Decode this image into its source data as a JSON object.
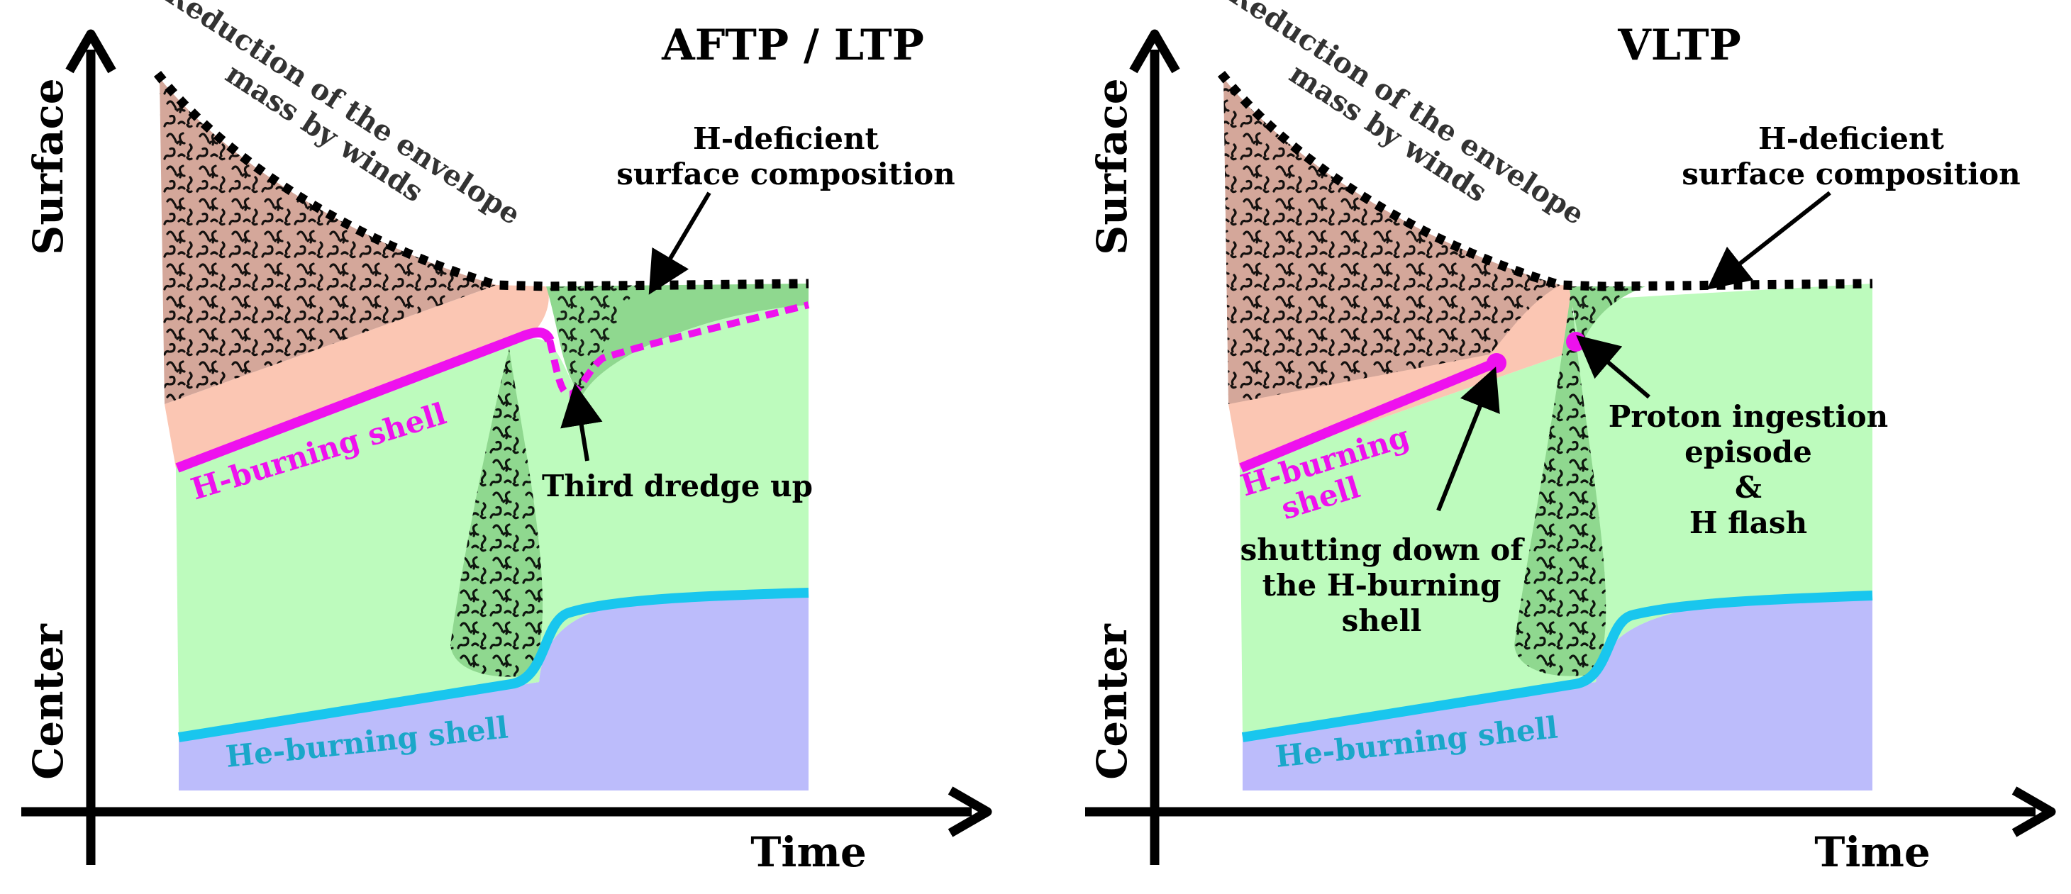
{
  "colors": {
    "envelope": "#d4a79a",
    "salmon": "#fbc6b3",
    "green": "#bdfbbd",
    "helium_core": "#bcbcfb",
    "h_shell": "#ee11ee",
    "he_shell": "#19c6ee",
    "axis": "#000000"
  },
  "panels": [
    {
      "id": "aftp-ltp",
      "title": "AFTP / LTP",
      "y_axis_top": "Surface",
      "y_axis_bottom": "Center",
      "x_axis": "Time",
      "winds_label": [
        "Reduction of the envelope",
        "mass by winds"
      ],
      "hdef_label": [
        "H-deficient",
        "surface composition"
      ],
      "h_shell_label": "H-burning shell",
      "he_shell_label": "He-burning shell",
      "annotations": [
        "Third dredge up"
      ]
    },
    {
      "id": "vltp",
      "title": "VLTP",
      "y_axis_top": "Surface",
      "y_axis_bottom": "Center",
      "x_axis": "Time",
      "winds_label": [
        "Reduction of the envelope",
        "mass by winds"
      ],
      "hdef_label": [
        "H-deficient",
        "surface composition"
      ],
      "h_shell_label": [
        "H-burning",
        "shell"
      ],
      "he_shell_label": "He-burning shell",
      "annotations": [
        [
          "shutting down of",
          "the H-burning",
          "shell"
        ],
        [
          "Proton ingestion",
          "episode",
          "&",
          "H flash"
        ]
      ]
    }
  ]
}
